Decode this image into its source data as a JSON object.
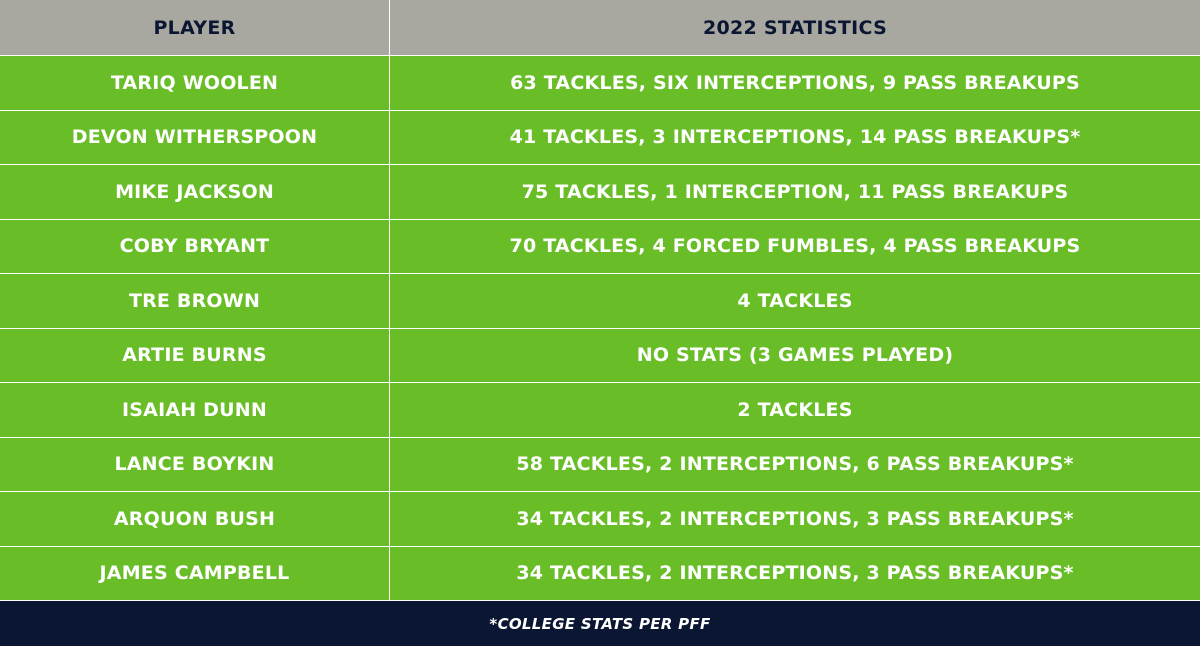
{
  "colors": {
    "header_bg": "#a8a8a0",
    "row_bg": "#69be28",
    "footer_bg": "#0b1633",
    "header_text": "#0b1633",
    "row_text": "#ffffff"
  },
  "table": {
    "headers": {
      "player": "PLAYER",
      "stats": "2022 STATISTICS"
    },
    "rows": [
      {
        "player": "TARIQ WOOLEN",
        "stats": "63 TACKLES, SIX INTERCEPTIONS, 9 PASS BREAKUPS"
      },
      {
        "player": "DEVON WITHERSPOON",
        "stats": "41 TACKLES, 3 INTERCEPTIONS, 14 PASS BREAKUPS*"
      },
      {
        "player": "MIKE JACKSON",
        "stats": "75 TACKLES, 1 INTERCEPTION, 11 PASS BREAKUPS"
      },
      {
        "player": "COBY BRYANT",
        "stats": "70 TACKLES, 4 FORCED FUMBLES, 4 PASS BREAKUPS"
      },
      {
        "player": "TRE BROWN",
        "stats": "4 TACKLES"
      },
      {
        "player": "ARTIE BURNS",
        "stats": "NO STATS (3 GAMES PLAYED)"
      },
      {
        "player": "ISAIAH DUNN",
        "stats": "2 TACKLES"
      },
      {
        "player": "LANCE BOYKIN",
        "stats": "58 TACKLES, 2 INTERCEPTIONS, 6 PASS BREAKUPS*"
      },
      {
        "player": "ARQUON BUSH",
        "stats": "34 TACKLES, 2 INTERCEPTIONS, 3 PASS BREAKUPS*"
      },
      {
        "player": "JAMES CAMPBELL",
        "stats": "34 TACKLES, 2 INTERCEPTIONS, 3 PASS BREAKUPS*"
      }
    ],
    "footnote": "*COLLEGE STATS PER PFF"
  }
}
